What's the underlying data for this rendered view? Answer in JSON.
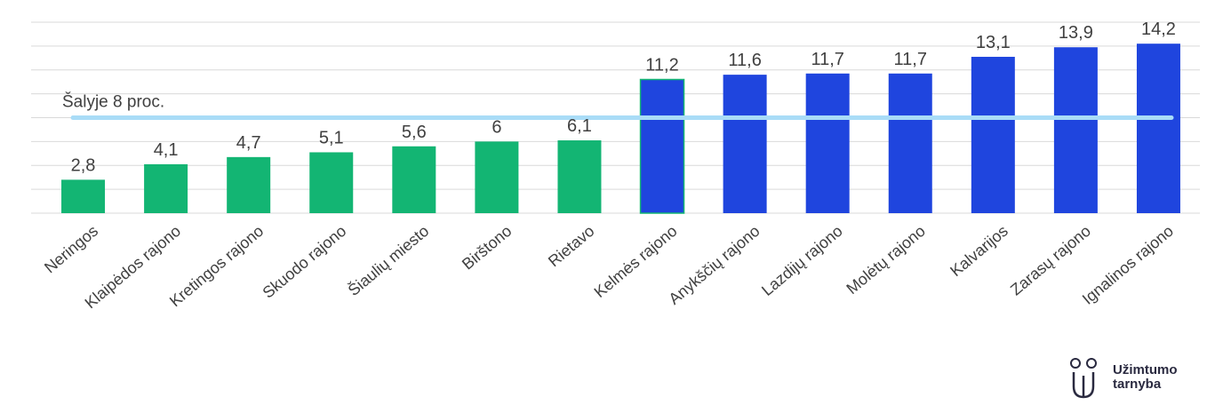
{
  "chart_data": {
    "type": "bar",
    "categories": [
      "Neringos",
      "Klaipėdos rajono",
      "Kretingos rajono",
      "Skuodo rajono",
      "Šiaulių miesto",
      "Birštono",
      "Rietavo",
      "Kelmės rajono",
      "Anykščių rajono",
      "Lazdijų rajono",
      "Molėtų rajono",
      "Kalvarijos",
      "Zarasų rajono",
      "Ignalinos rajono"
    ],
    "values": [
      2.8,
      4.1,
      4.7,
      5.1,
      5.6,
      6,
      6.1,
      11.2,
      11.6,
      11.7,
      11.7,
      13.1,
      13.9,
      14.2
    ],
    "value_labels": [
      "2,8",
      "4,1",
      "4,7",
      "5,1",
      "5,6",
      "6",
      "6,1",
      "11,2",
      "11,6",
      "11,7",
      "11,7",
      "13,1",
      "13,9",
      "14,2"
    ],
    "colors": [
      "#13b573",
      "#13b573",
      "#13b573",
      "#13b573",
      "#13b573",
      "#13b573",
      "#13b573",
      "#1f45de",
      "#1f45de",
      "#1f45de",
      "#1f45de",
      "#1f45de",
      "#1f45de",
      "#1f45de"
    ],
    "reference_line": {
      "value": 8,
      "label": "Šalyje 8 proc.",
      "color": "#a9dcf7"
    },
    "ylim": [
      0,
      16
    ],
    "grid": true,
    "title": "",
    "xlabel": "",
    "ylabel": ""
  },
  "logo": {
    "line1": "Užimtumo",
    "line2": "tarnyba"
  }
}
